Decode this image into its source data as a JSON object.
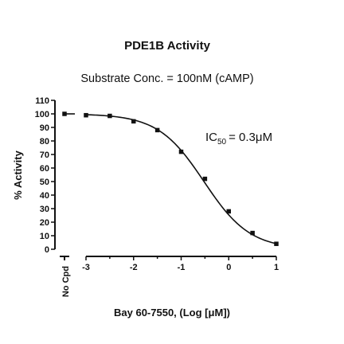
{
  "chart_data": {
    "type": "scatter",
    "title": "PDE1B Activity",
    "subtitle": "Substrate Conc. = 100nM (cAMP)",
    "xlabel": "Bay 60-7550, (Log [",
    "xlabel_mu": "μ",
    "xlabel_end": "M])",
    "ylabel": "% Activity",
    "ylim": [
      0,
      110
    ],
    "xlim": [
      -3.0,
      1.0
    ],
    "y_ticks": [
      "0",
      "10",
      "20",
      "30",
      "40",
      "50",
      "60",
      "70",
      "80",
      "90",
      "100",
      "110"
    ],
    "x_ticks": [
      "-3",
      "-2",
      "-1",
      "0",
      "1"
    ],
    "control_label": "No Cpd",
    "control_point": {
      "y": 100
    },
    "series": [
      {
        "x": [
          -3.0,
          -2.5,
          -2.0,
          -1.5,
          -1.0,
          -0.5,
          0.0,
          0.5,
          1.0
        ],
        "y": [
          99,
          98.5,
          94.5,
          88,
          72,
          52,
          28,
          12,
          4
        ]
      }
    ],
    "fit": {
      "top": 100,
      "bottom": 0,
      "logIC50": -0.52,
      "hill": 0.9
    },
    "annotation": {
      "prefix": "IC",
      "subscript": "50",
      "value": "= 0.3",
      "mu": "μ",
      "unit": "M"
    },
    "grid": false,
    "legend": "none"
  }
}
